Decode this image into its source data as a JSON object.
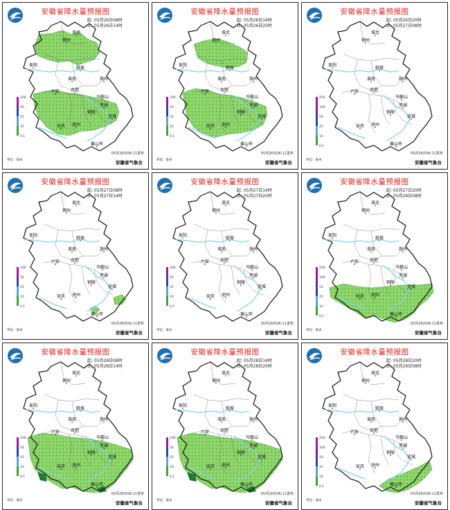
{
  "map_title": "安徽省降水量预报图",
  "agency": "安徽省气象台",
  "issued": "05月26日06:11发布",
  "unit_label": "单位：毫米",
  "city_labels": [
    "淮北",
    "宿州",
    "阜阳",
    "蚌埠",
    "淮南",
    "滁州",
    "六安",
    "合肥",
    "马鞍山",
    "芜湖",
    "铜陵",
    "宣城",
    "安庆",
    "池州",
    "黄山市"
  ],
  "colors": {
    "rain_light": "#8ed66a",
    "rain_mid": "#3fae3f",
    "rain_dark": "#1f7a35",
    "river": "#7fd4ee",
    "border": "#111111",
    "title": "#e0231d"
  },
  "panels": [
    {
      "start": "起: 05月26日08时",
      "end": "止: 05月26日14时",
      "legend": [
        "100",
        "50",
        "25",
        "10",
        "0.1"
      ],
      "rain": [
        "north",
        "central"
      ]
    },
    {
      "start": "起: 05月26日14时",
      "end": "止: 05月26日20时",
      "legend": [
        "100",
        "50",
        "25",
        "10",
        "0.1"
      ],
      "rain": [
        "north2",
        "central2"
      ]
    },
    {
      "start": "起: 05月26日20时",
      "end": "止: 05月27日08时",
      "legend": [
        "250",
        "100",
        "50",
        "25",
        "10",
        "0.1"
      ],
      "rain": []
    },
    {
      "start": "起: 05月27日08时",
      "end": "止: 05月27日14时",
      "legend": [
        "100",
        "50",
        "25",
        "10",
        "0.1"
      ],
      "rain": [
        "spots"
      ]
    },
    {
      "start": "起: 05月27日14时",
      "end": "止: 05月27日20时",
      "legend": [
        "100",
        "50",
        "25",
        "10",
        "0.1"
      ],
      "rain": []
    },
    {
      "start": "起: 05月27日20时",
      "end": "止: 05月28日08时",
      "legend": [
        "250",
        "100",
        "50",
        "25",
        "10",
        "0.1"
      ],
      "rain": [
        "south"
      ]
    },
    {
      "start": "起: 05月28日08时",
      "end": "止: 05月28日14时",
      "legend": [
        "100",
        "50",
        "25",
        "10",
        "0.1"
      ],
      "rain": [
        "south_wide"
      ]
    },
    {
      "start": "起: 05月28日14时",
      "end": "止: 05月28日20时",
      "legend": [
        "100",
        "50",
        "25",
        "10",
        "0.1"
      ],
      "rain": [
        "south_wide"
      ]
    },
    {
      "start": "起: 05月28日20时",
      "end": "止: 05月29日08时",
      "legend": [
        "250",
        "100",
        "50",
        "25",
        "10",
        "0.1"
      ],
      "rain": [
        "southeast"
      ]
    }
  ]
}
